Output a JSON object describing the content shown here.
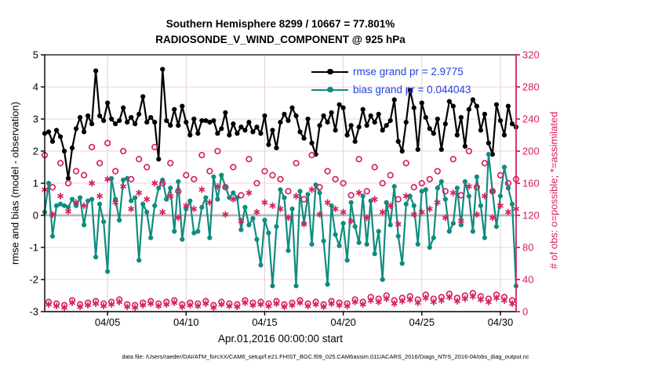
{
  "title": {
    "line1": "Southern Hemisphere 8299 / 10667 = 77.801%",
    "line2": "RADIOSONDE_V_WIND_COMPONENT @ 925 hPa"
  },
  "legend": [
    {
      "name": "rmse",
      "label": "rmse grand pr = 2.9775",
      "color": "#000000"
    },
    {
      "name": "bias",
      "label": "bias grand pr = 0.044043",
      "color": "#108c80"
    }
  ],
  "footer": {
    "datafile": "data file: /Users/raeder/DAI/ATM_forcXX/CAM6_setup/f.e21.FHIST_BGC.f09_025.CAM6assim.011/ACARS_2016/Diags_NTrS_2016-04/obs_diag_output.nc"
  },
  "chart_data": {
    "type": "line",
    "title": "Southern Hemisphere 8299 / 10667 = 77.801% | RADIOSONDE_V_WIND_COMPONENT @ 925 hPa",
    "xlabel": "Apr.01,2016 00:00:00 start",
    "ylabel_left": "rmse and bias (model - observation)",
    "ylabel_right": "# of obs: o=possible; *=assimilated",
    "ylim_left": [
      -3,
      5
    ],
    "ylim_right": [
      0,
      320
    ],
    "yticks_left": [
      -3,
      -2,
      -1,
      0,
      1,
      2,
      3,
      4,
      5
    ],
    "yticks_right": [
      0,
      40,
      80,
      120,
      160,
      200,
      240,
      280,
      320
    ],
    "xlim_days": [
      0,
      30
    ],
    "xticks": [
      {
        "day": 4,
        "label": "04/05"
      },
      {
        "day": 9,
        "label": "04/10"
      },
      {
        "day": 14,
        "label": "04/15"
      },
      {
        "day": 19,
        "label": "04/20"
      },
      {
        "day": 24,
        "label": "04/25"
      },
      {
        "day": 29,
        "label": "04/30"
      }
    ],
    "x_start_day": 0,
    "x_step_day": 0.25,
    "cycle_hours": 6,
    "grid": true,
    "legend_position": "top-right-inside",
    "zero_line": {
      "value": 0
    },
    "colors": {
      "rmse": "#000000",
      "bias": "#108c80",
      "obs": "#d6205f",
      "grid_h": "#f3cfdd",
      "grid_v": "#dcd2d8",
      "zero": "#b5b5b5",
      "axis": "#000000",
      "right_axis": "#d6205f",
      "legend_text": "#2440e0"
    },
    "series": [
      {
        "name": "rmse",
        "axis": "left",
        "marker": "dot",
        "line": true,
        "color": "#000000",
        "values": [
          2.55,
          2.6,
          2.3,
          2.65,
          2.45,
          2.0,
          1.15,
          2.1,
          2.7,
          3.05,
          2.6,
          3.1,
          2.85,
          4.5,
          3.1,
          2.95,
          3.5,
          3.0,
          2.85,
          2.95,
          3.35,
          2.9,
          3.05,
          2.85,
          3.15,
          3.7,
          2.9,
          3.05,
          2.9,
          1.75,
          4.55,
          2.95,
          2.8,
          3.3,
          2.8,
          3.4,
          2.9,
          2.5,
          3.0,
          2.55,
          2.95,
          2.95,
          2.9,
          2.95,
          2.55,
          2.7,
          3.2,
          2.5,
          2.85,
          2.55,
          2.75,
          2.65,
          2.9,
          2.6,
          2.75,
          2.55,
          3.1,
          2.2,
          2.65,
          2.1,
          2.9,
          3.15,
          2.95,
          3.35,
          3.1,
          2.6,
          2.4,
          3.0,
          2.25,
          1.9,
          2.8,
          3.1,
          2.9,
          3.2,
          2.65,
          3.45,
          3.35,
          2.5,
          2.8,
          2.3,
          2.75,
          3.3,
          2.8,
          3.1,
          2.9,
          3.15,
          2.65,
          2.8,
          2.95,
          3.6,
          2.3,
          2.0,
          2.9,
          3.9,
          3.35,
          2.05,
          3.5,
          3.05,
          2.7,
          2.55,
          3.0,
          2.05,
          2.85,
          3.55,
          3.4,
          2.5,
          3.05,
          2.15,
          3.3,
          3.6,
          3.4,
          2.65,
          3.15,
          2.25,
          1.9,
          3.45,
          2.95,
          2.5,
          3.4,
          2.85,
          2.75
        ]
      },
      {
        "name": "bias",
        "axis": "left",
        "marker": "dot",
        "line": true,
        "color": "#108c80",
        "values": [
          0.1,
          1.0,
          -0.65,
          0.3,
          0.35,
          0.3,
          0.25,
          0.5,
          0.3,
          0.55,
          -0.3,
          0.45,
          0.5,
          -1.3,
          0.35,
          -0.2,
          -1.75,
          1.15,
          0.5,
          -0.15,
          1.1,
          1.15,
          0.45,
          0.55,
          -1.4,
          0.35,
          0.1,
          -0.7,
          0.3,
          0.85,
          1.1,
          0.5,
          0.85,
          -0.5,
          1.05,
          -0.75,
          0.2,
          0.45,
          -0.55,
          -0.5,
          0.25,
          0.55,
          -0.7,
          1.2,
          0.5,
          1.25,
          0.9,
          0.55,
          0.7,
          0.55,
          -0.45,
          0.25,
          -0.3,
          -0.1,
          -0.75,
          -1.55,
          -0.15,
          -0.55,
          -2.2,
          -0.35,
          0.8,
          0.55,
          -1.1,
          0.2,
          -2.2,
          0.75,
          -0.25,
          0.65,
          -0.9,
          0.95,
          0.7,
          -0.8,
          -2.15,
          0.3,
          -0.6,
          -0.95,
          -0.25,
          -1.4,
          0.4,
          -0.35,
          -0.85,
          0.6,
          -0.9,
          0.45,
          -1.2,
          -0.5,
          -2.0,
          0.4,
          -0.3,
          0.9,
          -0.65,
          -1.5,
          0.35,
          0.6,
          0.3,
          -0.9,
          0.75,
          0.8,
          -1.0,
          -0.7,
          0.85,
          1.05,
          0.5,
          -0.5,
          -0.25,
          0.85,
          -0.3,
          1.05,
          0.6,
          -0.5,
          1.2,
          0.3,
          -0.7,
          1.9,
          0.75,
          -0.35,
          0.6,
          1.5,
          0.85,
          0.35,
          -2.2
        ]
      },
      {
        "name": "possible",
        "axis": "right",
        "marker": "circle",
        "line": false,
        "color": "#d6205f",
        "values": [
          195,
          12,
          155,
          10,
          185,
          8,
          160,
          14,
          175,
          9,
          170,
          11,
          205,
          13,
          185,
          10,
          210,
          12,
          175,
          15,
          200,
          9,
          165,
          8,
          190,
          11,
          180,
          13,
          205,
          10,
          160,
          12,
          185,
          14,
          150,
          9,
          170,
          11,
          165,
          10,
          195,
          13,
          175,
          8,
          200,
          12,
          155,
          10,
          180,
          9,
          145,
          14,
          190,
          11,
          160,
          12,
          175,
          10,
          170,
          13,
          165,
          9,
          150,
          11,
          185,
          14,
          140,
          10,
          195,
          12,
          155,
          9,
          175,
          13,
          165,
          11,
          160,
          10,
          145,
          15,
          190,
          12,
          150,
          18,
          180,
          16,
          160,
          20,
          170,
          14,
          140,
          17,
          185,
          19,
          155,
          15,
          160,
          21,
          165,
          16,
          175,
          18,
          150,
          22,
          190,
          17,
          145,
          20,
          200,
          23,
          155,
          19,
          185,
          16,
          150,
          21,
          170,
          18,
          160,
          14,
          165
        ]
      },
      {
        "name": "assimilated",
        "axis": "right",
        "marker": "asterisk",
        "line": false,
        "color": "#d6205f",
        "values": [
          152,
          9,
          121,
          7,
          144,
          5,
          125,
          11,
          136,
          6,
          132,
          8,
          160,
          10,
          144,
          7,
          165,
          9,
          136,
          12,
          156,
          6,
          128,
          5,
          148,
          8,
          140,
          10,
          160,
          7,
          124,
          9,
          144,
          11,
          117,
          6,
          132,
          8,
          128,
          7,
          152,
          10,
          136,
          5,
          156,
          9,
          121,
          7,
          140,
          6,
          113,
          11,
          148,
          8,
          124,
          9,
          136,
          7,
          132,
          10,
          128,
          6,
          117,
          8,
          144,
          11,
          109,
          7,
          152,
          9,
          121,
          6,
          136,
          10,
          128,
          8,
          124,
          7,
          113,
          12,
          148,
          9,
          117,
          14,
          140,
          12,
          124,
          16,
          132,
          10,
          109,
          13,
          144,
          15,
          121,
          11,
          124,
          17,
          128,
          12,
          136,
          14,
          117,
          18,
          148,
          13,
          113,
          16,
          156,
          19,
          121,
          15,
          144,
          12,
          117,
          17,
          132,
          14,
          124,
          10,
          128
        ]
      }
    ]
  }
}
